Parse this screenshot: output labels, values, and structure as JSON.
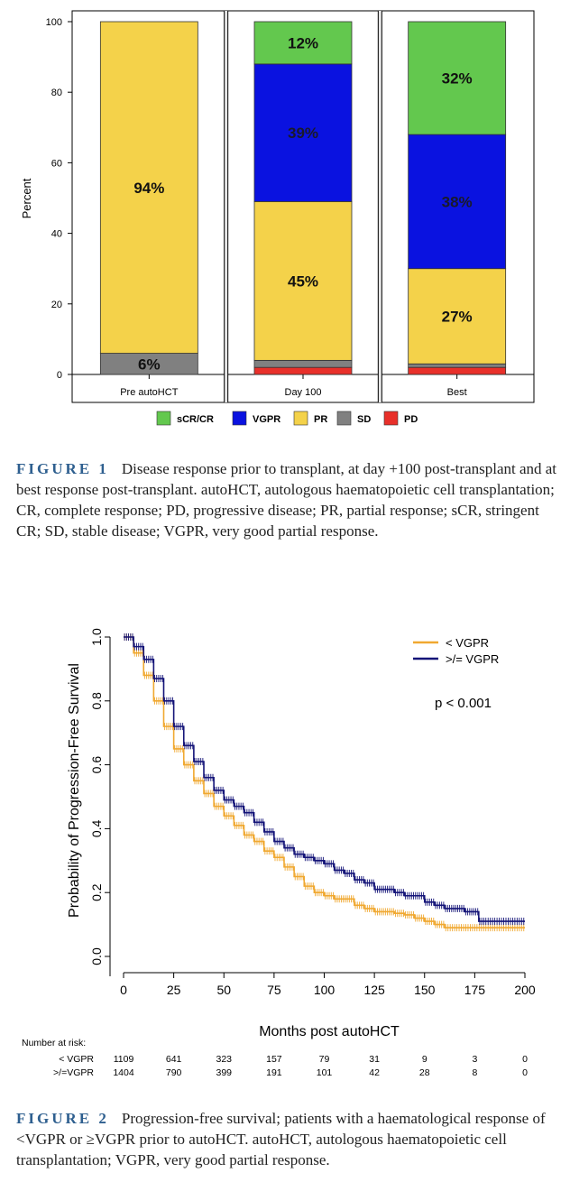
{
  "figure1": {
    "caption_label": "FIGURE 1",
    "caption_text": "Disease response prior to transplant, at day +100 post-transplant and at best response post-transplant. autoHCT, autologous haematopoietic cell transplantation; CR, complete response; PD, progressive disease; PR, partial response; sCR, stringent CR; SD, stable disease; VGPR, very good partial response."
  },
  "figure2": {
    "caption_label": "FIGURE 2",
    "caption_text": "Progression-free survival; patients with a haematological response of <VGPR or ≥VGPR prior to autoHCT. autoHCT, autologous haematopoietic cell transplantation; VGPR, very good partial response.",
    "p_value": "p < 0.001",
    "risk_title": "Number at risk:",
    "risk_rows": [
      {
        "label": "< VGPR",
        "values": [
          "1109",
          "641",
          "323",
          "157",
          "79",
          "31",
          "9",
          "3",
          "0"
        ]
      },
      {
        "label": ">/=VGPR",
        "values": [
          "1404",
          "790",
          "399",
          "191",
          "101",
          "42",
          "28",
          "8",
          "0"
        ]
      }
    ]
  },
  "chart_data": [
    {
      "type": "bar",
      "stacked": true,
      "title": "",
      "xlabel": "",
      "ylabel": "Percent",
      "ylim": [
        0,
        100
      ],
      "yticks": [
        0,
        20,
        40,
        60,
        80,
        100
      ],
      "categories": [
        "Pre autoHCT",
        "Day 100",
        "Best"
      ],
      "series": [
        {
          "name": "PD",
          "color": "#e8302a",
          "values": [
            0,
            2,
            2
          ],
          "labels": [
            "",
            "",
            ""
          ]
        },
        {
          "name": "SD",
          "color": "#808080",
          "values": [
            6,
            2,
            1
          ],
          "labels": [
            "6%",
            "",
            ""
          ]
        },
        {
          "name": "PR",
          "color": "#f4d24a",
          "values": [
            94,
            45,
            27
          ],
          "labels": [
            "94%",
            "45%",
            "27%"
          ]
        },
        {
          "name": "VGPR",
          "color": "#0a12e0",
          "values": [
            0,
            39,
            38
          ],
          "labels": [
            "",
            "39%",
            "38%"
          ]
        },
        {
          "name": "sCR/CR",
          "color": "#63c84e",
          "values": [
            0,
            12,
            32
          ],
          "labels": [
            "",
            "12%",
            "32%"
          ]
        }
      ],
      "legend_order": [
        "sCR/CR",
        "VGPR",
        "PR",
        "SD",
        "PD"
      ],
      "legend": "bottom"
    },
    {
      "type": "line",
      "title": "",
      "xlabel": "Months post autoHCT",
      "ylabel": "Probability of Progression-Free Survival",
      "xlim": [
        0,
        200
      ],
      "ylim": [
        0,
        1
      ],
      "xticks": [
        0,
        25,
        50,
        75,
        100,
        125,
        150,
        175,
        200
      ],
      "yticks": [
        0.0,
        0.2,
        0.4,
        0.6,
        0.8,
        1.0
      ],
      "legend": "top-right",
      "series": [
        {
          "name": "< VGPR",
          "color": "#f0a830",
          "x": [
            0,
            5,
            10,
            15,
            20,
            25,
            30,
            35,
            40,
            45,
            50,
            55,
            60,
            65,
            70,
            75,
            80,
            85,
            90,
            95,
            100,
            105,
            110,
            115,
            120,
            125,
            130,
            135,
            140,
            145,
            150,
            155,
            160,
            170,
            180,
            190,
            200
          ],
          "y": [
            1.0,
            0.95,
            0.88,
            0.8,
            0.72,
            0.65,
            0.6,
            0.55,
            0.51,
            0.47,
            0.44,
            0.41,
            0.38,
            0.36,
            0.33,
            0.31,
            0.28,
            0.25,
            0.22,
            0.2,
            0.19,
            0.18,
            0.18,
            0.16,
            0.15,
            0.14,
            0.14,
            0.135,
            0.13,
            0.12,
            0.11,
            0.1,
            0.09,
            0.09,
            0.09,
            0.09,
            0.09
          ]
        },
        {
          "name": ">/= VGPR",
          "color": "#141478",
          "x": [
            0,
            5,
            10,
            15,
            20,
            25,
            30,
            35,
            40,
            45,
            50,
            55,
            60,
            65,
            70,
            75,
            80,
            85,
            90,
            95,
            100,
            105,
            110,
            115,
            120,
            125,
            130,
            135,
            140,
            145,
            150,
            155,
            160,
            165,
            170,
            175,
            177,
            180,
            190,
            200
          ],
          "y": [
            1.0,
            0.97,
            0.93,
            0.87,
            0.8,
            0.72,
            0.66,
            0.61,
            0.56,
            0.52,
            0.49,
            0.47,
            0.45,
            0.42,
            0.39,
            0.36,
            0.34,
            0.32,
            0.31,
            0.3,
            0.29,
            0.27,
            0.26,
            0.24,
            0.23,
            0.21,
            0.21,
            0.2,
            0.19,
            0.19,
            0.17,
            0.16,
            0.15,
            0.15,
            0.14,
            0.14,
            0.11,
            0.11,
            0.11,
            0.11
          ]
        }
      ]
    }
  ]
}
